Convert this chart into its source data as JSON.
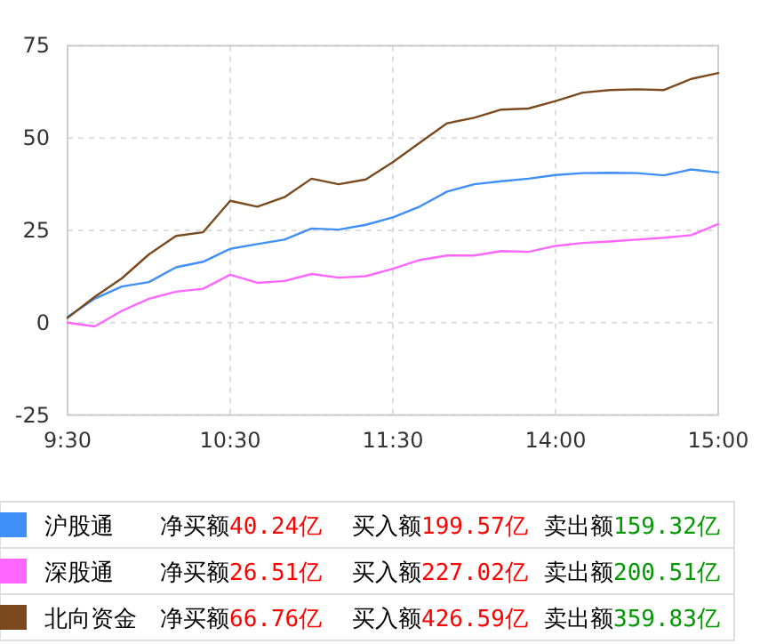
{
  "chart_data": {
    "type": "line",
    "categories": [
      "9:30",
      null,
      null,
      null,
      null,
      null,
      "10:30",
      null,
      null,
      null,
      null,
      null,
      "11:30",
      null,
      null,
      null,
      null,
      null,
      "14:00",
      null,
      null,
      null,
      null,
      null,
      "15:00"
    ],
    "ylim": [
      -25,
      75
    ],
    "yticks": [
      -25,
      0,
      25,
      50,
      75
    ],
    "grid": true,
    "legend": "bottom",
    "line_style": "solid",
    "marker": "none",
    "series": [
      {
        "name": "沪股通",
        "color": "#3f8ff6",
        "values": [
          1.6,
          6.5,
          9.8,
          11,
          15,
          16.5,
          20,
          21.3,
          22.5,
          25.5,
          25.2,
          26.5,
          28.5,
          31.5,
          35.5,
          37.5,
          38.3,
          39,
          40,
          40.5,
          40.6,
          40.5,
          39.9,
          41.5,
          40.7
        ]
      },
      {
        "name": "深股通",
        "color": "#ff66ff",
        "values": [
          0,
          -1,
          3.2,
          6.5,
          8.4,
          9.2,
          13,
          10.8,
          11.3,
          13.2,
          12.2,
          12.6,
          14.6,
          17,
          18.2,
          18.2,
          19.4,
          19.2,
          20.8,
          21.6,
          22,
          22.5,
          23,
          23.7,
          26.7
        ]
      },
      {
        "name": "北向资金",
        "color": "#7a4a1e",
        "values": [
          1.3,
          7,
          12,
          18.5,
          23.5,
          24.5,
          33,
          31.4,
          34,
          39,
          37.5,
          38.8,
          43.5,
          48.8,
          54,
          55.5,
          57.7,
          58,
          60,
          62.3,
          63,
          63.2,
          63,
          66,
          67.6
        ]
      }
    ],
    "annotations": [
      "净买额40.24亿",
      "买入额199.57亿",
      "卖出额159.32亿",
      "净买额26.51亿",
      "买入额227.02亿",
      "卖出额200.51亿",
      "净买额66.76亿",
      "买入额426.59亿",
      "卖出额359.83亿"
    ]
  }
}
